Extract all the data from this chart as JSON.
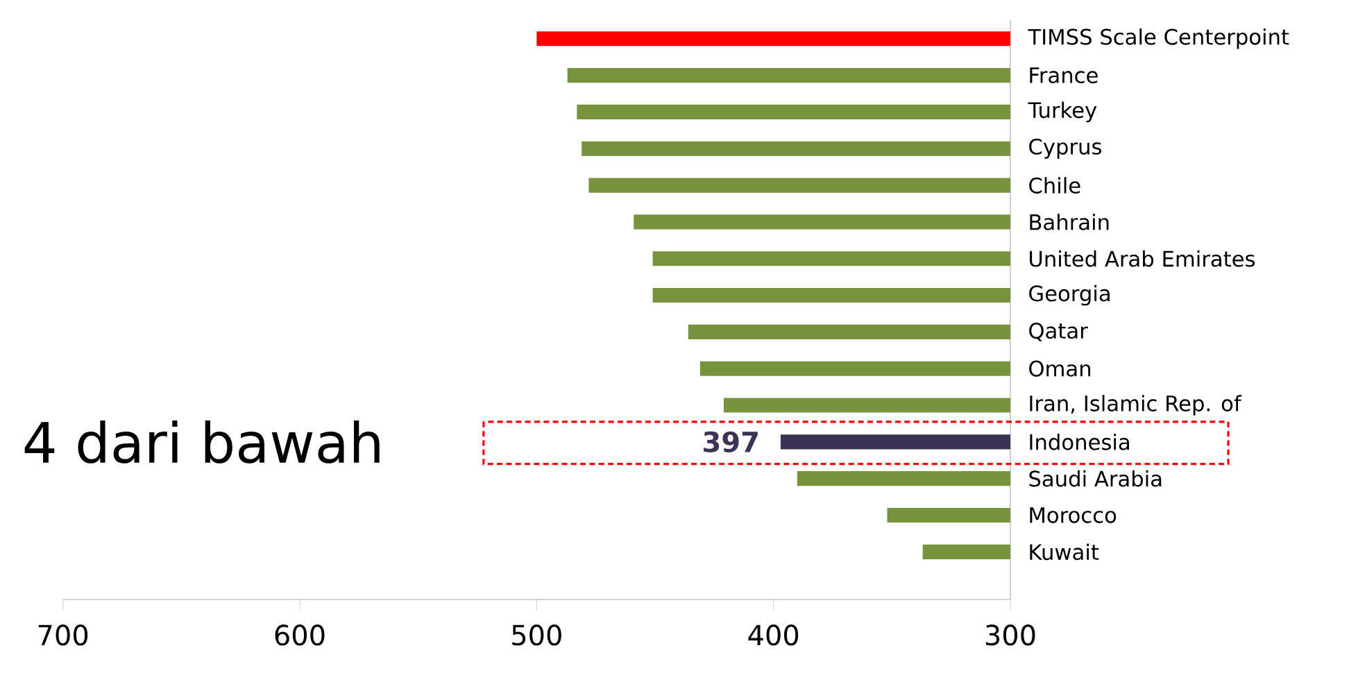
{
  "chart_data": {
    "type": "bar",
    "orientation": "horizontal",
    "categories": [
      "TIMSS Scale Centerpoint",
      "France",
      "Turkey",
      "Cyprus",
      "Chile",
      "Bahrain",
      "United Arab Emirates",
      "Georgia",
      "Qatar",
      "Oman",
      "Iran, Islamic Rep. of",
      "Indonesia",
      "Saudi Arabia",
      "Morocco",
      "Kuwait"
    ],
    "values": [
      500,
      487,
      483,
      481,
      478,
      459,
      451,
      451,
      436,
      431,
      421,
      397,
      390,
      352,
      337
    ],
    "colors": [
      "#ff0000",
      "#77933c",
      "#77933c",
      "#77933c",
      "#77933c",
      "#77933c",
      "#77933c",
      "#77933c",
      "#77933c",
      "#77933c",
      "#77933c",
      "#3d3154",
      "#77933c",
      "#77933c",
      "#77933c"
    ],
    "value_labels": [
      null,
      null,
      null,
      null,
      null,
      null,
      null,
      null,
      null,
      null,
      null,
      "397",
      null,
      null,
      null
    ],
    "xlim": [
      700,
      300
    ],
    "xticks": [
      700,
      600,
      500,
      400,
      300
    ],
    "annotations": [
      "4 dari bawah"
    ]
  }
}
